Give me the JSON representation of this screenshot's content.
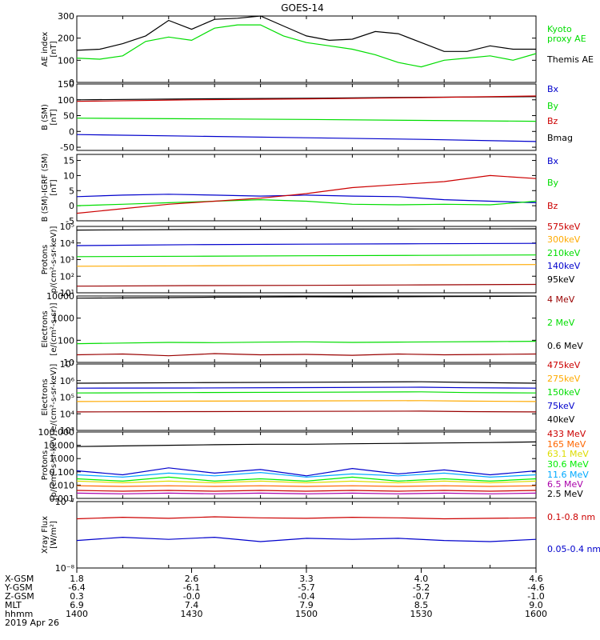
{
  "title": "GOES-14",
  "colors": {
    "black": "#000000",
    "green": "#00dd00",
    "red": "#cc0000",
    "blue": "#0000cc",
    "darkred": "#990000",
    "orange": "#ffaa00",
    "yellow": "#dddd00",
    "cyan": "#00aaff",
    "purple": "#aa00aa",
    "brightgreen": "#00ee00"
  },
  "chart_data": [
    {
      "type": "line",
      "id": "ae",
      "ylabel_lines": [
        "AE index",
        "[nT]"
      ],
      "yscale": "linear",
      "ylim": [
        0,
        300
      ],
      "ticks": [
        0,
        100,
        200,
        300
      ],
      "tick_labels": [
        "0",
        "100",
        "200",
        "300"
      ],
      "x": [
        0,
        0.05,
        0.1,
        0.15,
        0.2,
        0.25,
        0.3,
        0.35,
        0.4,
        0.45,
        0.5,
        0.55,
        0.6,
        0.65,
        0.7,
        0.75,
        0.8,
        0.85,
        0.9,
        0.95,
        1.0
      ],
      "legend": [
        {
          "label": "Kyoto",
          "color": "#00dd00"
        },
        {
          "label": "proxy AE",
          "color": "#00dd00"
        },
        {
          "label": "Themis AE",
          "color": "#000000"
        }
      ],
      "series": [
        {
          "color": "#000000",
          "values": [
            145,
            150,
            175,
            210,
            280,
            240,
            285,
            290,
            300,
            255,
            210,
            190,
            195,
            230,
            220,
            180,
            140,
            140,
            165,
            150,
            150
          ]
        },
        {
          "color": "#00dd00",
          "values": [
            110,
            105,
            120,
            185,
            205,
            190,
            245,
            260,
            260,
            210,
            180,
            165,
            150,
            125,
            90,
            70,
            100,
            110,
            120,
            100,
            130
          ]
        }
      ]
    },
    {
      "type": "line",
      "id": "bsm",
      "ylabel_lines": [
        "B (SM)",
        "[nT]"
      ],
      "yscale": "linear",
      "ylim": [
        -60,
        150
      ],
      "ticks": [
        -50,
        0,
        50,
        100,
        150
      ],
      "tick_labels": [
        "-50",
        "0",
        "50",
        "100",
        "150"
      ],
      "x": [
        0,
        0.25,
        0.5,
        0.75,
        1.0
      ],
      "legend": [
        {
          "label": "Bx",
          "color": "#0000cc"
        },
        {
          "label": "By",
          "color": "#00dd00"
        },
        {
          "label": "Bz",
          "color": "#cc0000"
        },
        {
          "label": "Bmag",
          "color": "#000000"
        }
      ],
      "series": [
        {
          "color": "#000000",
          "values": [
            100,
            103,
            105,
            108,
            110
          ]
        },
        {
          "color": "#cc0000",
          "values": [
            95,
            100,
            103,
            107,
            112
          ]
        },
        {
          "color": "#00dd00",
          "values": [
            42,
            40,
            38,
            35,
            32
          ]
        },
        {
          "color": "#0000cc",
          "values": [
            -10,
            -15,
            -20,
            -25,
            -32
          ]
        }
      ]
    },
    {
      "type": "line",
      "id": "bdiff",
      "ylabel_lines": [
        "B (SM)-IGRF (SM)",
        "[nT]"
      ],
      "yscale": "linear",
      "ylim": [
        -5,
        17
      ],
      "ticks": [
        -5,
        0,
        5,
        10,
        15
      ],
      "tick_labels": [
        "-5",
        "0",
        "5",
        "10",
        "15"
      ],
      "x": [
        0,
        0.1,
        0.2,
        0.3,
        0.4,
        0.5,
        0.6,
        0.7,
        0.8,
        0.9,
        1.0
      ],
      "legend": [
        {
          "label": "Bx",
          "color": "#0000cc"
        },
        {
          "label": "By",
          "color": "#00dd00"
        },
        {
          "label": "Bz",
          "color": "#cc0000"
        }
      ],
      "series": [
        {
          "color": "#0000cc",
          "values": [
            3,
            3.5,
            3.8,
            3.5,
            3.2,
            3.5,
            3.2,
            3,
            2,
            1.5,
            1
          ]
        },
        {
          "color": "#00dd00",
          "values": [
            0,
            0.5,
            1,
            1.5,
            2,
            1.5,
            0.5,
            0.3,
            0.5,
            0.3,
            1.5
          ]
        },
        {
          "color": "#cc0000",
          "values": [
            -2.5,
            -1,
            0.5,
            1.5,
            2.5,
            4,
            6,
            7,
            8,
            10,
            9
          ]
        }
      ]
    },
    {
      "type": "line",
      "id": "protons1",
      "ylabel_lines": [
        "Protons",
        "p/(cm²-s-sr-keV)]"
      ],
      "yscale": "log",
      "ylim": [
        10,
        100000
      ],
      "ticks": [
        10,
        100,
        1000,
        10000,
        100000
      ],
      "tick_labels": [
        "10¹",
        "10²",
        "10³",
        "10⁴",
        "10⁵"
      ],
      "x": [
        0,
        0.25,
        0.5,
        0.75,
        1.0
      ],
      "legend": [
        {
          "label": "575keV",
          "color": "#cc0000"
        },
        {
          "label": "300keV",
          "color": "#ffaa00"
        },
        {
          "label": "210keV",
          "color": "#00dd00"
        },
        {
          "label": "140keV",
          "color": "#0000cc"
        },
        {
          "label": "95keV",
          "color": "#000000"
        }
      ],
      "series": [
        {
          "color": "#000000",
          "values": [
            60000,
            65000,
            68000,
            70000,
            72000
          ]
        },
        {
          "color": "#0000cc",
          "values": [
            7000,
            8000,
            8500,
            9000,
            9500
          ]
        },
        {
          "color": "#00dd00",
          "values": [
            1500,
            1600,
            1700,
            1800,
            1900
          ]
        },
        {
          "color": "#ffaa00",
          "values": [
            400,
            420,
            450,
            480,
            500
          ]
        },
        {
          "color": "#990000",
          "values": [
            25,
            27,
            28,
            30,
            32
          ]
        }
      ]
    },
    {
      "type": "line",
      "id": "electrons1",
      "ylabel_lines": [
        "Electrons",
        "[e/(cm²-s-sr)]"
      ],
      "yscale": "log",
      "ylim": [
        10,
        10000
      ],
      "ticks": [
        10,
        100,
        1000,
        10000
      ],
      "tick_labels": [
        "10",
        "100",
        "1000",
        "10000"
      ],
      "x": [
        0,
        0.1,
        0.2,
        0.3,
        0.4,
        0.5,
        0.6,
        0.7,
        0.8,
        0.9,
        1.0
      ],
      "legend": [
        {
          "label": "4 MeV",
          "color": "#990000"
        },
        {
          "label": "2 MeV",
          "color": "#00dd00"
        },
        {
          "label": "0.6 MeV",
          "color": "#000000"
        }
      ],
      "series": [
        {
          "color": "#000000",
          "values": [
            8000,
            8200,
            8500,
            8800,
            9000,
            9200,
            9100,
            9300,
            9500,
            9600,
            9800
          ]
        },
        {
          "color": "#00dd00",
          "values": [
            70,
            75,
            80,
            78,
            82,
            85,
            80,
            83,
            85,
            87,
            90
          ]
        },
        {
          "color": "#990000",
          "values": [
            22,
            24,
            20,
            25,
            22,
            23,
            21,
            24,
            22,
            23,
            24
          ]
        }
      ]
    },
    {
      "type": "line",
      "id": "electrons2",
      "ylabel_lines": [
        "Electrons",
        "e/(cm²-s-sr-keV)]"
      ],
      "yscale": "log",
      "ylim": [
        1000,
        10000000
      ],
      "ticks": [
        1000,
        10000,
        100000,
        1000000,
        10000000
      ],
      "tick_labels": [
        "10³",
        "10⁴",
        "10⁵",
        "10⁶",
        "10⁷"
      ],
      "x": [
        0,
        0.25,
        0.5,
        0.75,
        0.85,
        1.0
      ],
      "legend": [
        {
          "label": "475keV",
          "color": "#cc0000"
        },
        {
          "label": "275keV",
          "color": "#ffaa00"
        },
        {
          "label": "150keV",
          "color": "#00dd00"
        },
        {
          "label": "75keV",
          "color": "#0000cc"
        },
        {
          "label": "40keV",
          "color": "#000000"
        }
      ],
      "series": [
        {
          "color": "#000000",
          "values": [
            700000,
            750000,
            800000,
            850000,
            780000,
            700000
          ]
        },
        {
          "color": "#0000cc",
          "values": [
            350000,
            360000,
            380000,
            400000,
            370000,
            350000
          ]
        },
        {
          "color": "#00dd00",
          "values": [
            180000,
            190000,
            200000,
            210000,
            190000,
            180000
          ]
        },
        {
          "color": "#ffaa00",
          "values": [
            55000,
            58000,
            60000,
            62000,
            58000,
            55000
          ]
        },
        {
          "color": "#990000",
          "values": [
            13000,
            13500,
            14000,
            14500,
            13500,
            13000
          ]
        }
      ]
    },
    {
      "type": "line",
      "id": "protons2",
      "ylabel_lines": [
        "Protons",
        "[p/(cm²-s-sr-keV)]"
      ],
      "yscale": "log",
      "ylim": [
        0.001,
        100
      ],
      "ticks": [
        0.001,
        0.01,
        0.1,
        1,
        10,
        100
      ],
      "tick_labels": [
        "0.001",
        "0.010",
        "0.100",
        "1.000",
        "10.000",
        "100.000"
      ],
      "x": [
        0,
        0.1,
        0.2,
        0.3,
        0.4,
        0.5,
        0.6,
        0.7,
        0.8,
        0.9,
        1.0
      ],
      "legend": [
        {
          "label": "433 MeV",
          "color": "#cc0000"
        },
        {
          "label": "165 MeV",
          "color": "#ff6600"
        },
        {
          "label": "63.1 MeV",
          "color": "#dddd00"
        },
        {
          "label": "30.6 MeV",
          "color": "#00ee00"
        },
        {
          "label": "11.6 MeV",
          "color": "#00aaff"
        },
        {
          "label": "6.5 MeV",
          "color": "#aa00aa"
        },
        {
          "label": "2.5 MeV",
          "color": "#000000"
        }
      ],
      "series": [
        {
          "color": "#000000",
          "values": [
            8,
            9,
            10,
            11,
            12,
            12,
            13,
            14,
            15,
            16,
            18
          ]
        },
        {
          "color": "#0000cc",
          "values": [
            0.12,
            0.06,
            0.2,
            0.08,
            0.15,
            0.05,
            0.18,
            0.07,
            0.14,
            0.06,
            0.12
          ]
        },
        {
          "color": "#00aaff",
          "values": [
            0.06,
            0.04,
            0.08,
            0.05,
            0.09,
            0.04,
            0.07,
            0.05,
            0.08,
            0.04,
            0.06
          ]
        },
        {
          "color": "#00ee00",
          "values": [
            0.03,
            0.02,
            0.04,
            0.02,
            0.03,
            0.02,
            0.04,
            0.02,
            0.03,
            0.02,
            0.03
          ]
        },
        {
          "color": "#dddd00",
          "values": [
            0.02,
            0.015,
            0.02,
            0.015,
            0.02,
            0.015,
            0.02,
            0.015,
            0.02,
            0.015,
            0.02
          ]
        },
        {
          "color": "#ff6600",
          "values": [
            0.009,
            0.008,
            0.009,
            0.008,
            0.009,
            0.008,
            0.009,
            0.008,
            0.009,
            0.008,
            0.009
          ]
        },
        {
          "color": "#cc0000",
          "values": [
            0.004,
            0.0035,
            0.004,
            0.0035,
            0.004,
            0.0035,
            0.004,
            0.0035,
            0.004,
            0.0035,
            0.004
          ]
        },
        {
          "color": "#aa00aa",
          "values": [
            0.0025,
            0.0022,
            0.0025,
            0.0022,
            0.0025,
            0.0022,
            0.0025,
            0.0022,
            0.0025,
            0.0022,
            0.0025
          ]
        }
      ]
    },
    {
      "type": "line",
      "id": "xray",
      "ylabel_lines": [
        "Xray Flux",
        "[W/m²]"
      ],
      "yscale": "log",
      "ylim": [
        1e-08,
        1e-07
      ],
      "ticks": [
        1e-08,
        1e-07
      ],
      "tick_labels": [
        "10⁻⁸",
        "10⁻⁷"
      ],
      "x": [
        0,
        0.1,
        0.2,
        0.3,
        0.4,
        0.5,
        0.6,
        0.7,
        0.8,
        0.9,
        1.0
      ],
      "legend": [
        {
          "label": "0.1-0.8 nm",
          "color": "#cc0000"
        },
        {
          "label": "0.05-0.4 nm",
          "color": "#0000cc"
        }
      ],
      "series": [
        {
          "color": "#cc0000",
          "values": [
            5.5e-08,
            5.8e-08,
            5.6e-08,
            5.9e-08,
            5.7e-08,
            5.6e-08,
            5.8e-08,
            5.7e-08,
            5.5e-08,
            5.6e-08,
            5.7e-08
          ]
        },
        {
          "color": "#0000cc",
          "values": [
            2.6e-08,
            2.9e-08,
            2.7e-08,
            2.9e-08,
            2.5e-08,
            2.8e-08,
            2.7e-08,
            2.8e-08,
            2.6e-08,
            2.5e-08,
            2.7e-08
          ]
        }
      ]
    }
  ],
  "footer": {
    "row_labels": [
      "X-GSM",
      "Y-GSM",
      "Z-GSM",
      "MLT",
      "hhmm",
      "2019 Apr 26"
    ],
    "columns": [
      [
        "1.8",
        "-6.4",
        "0.3",
        "6.9",
        "1400"
      ],
      [
        "2.6",
        "-6.1",
        "-0.0",
        "7.4",
        "1430"
      ],
      [
        "3.3",
        "-5.7",
        "-0.4",
        "7.9",
        "1500"
      ],
      [
        "4.0",
        "-5.2",
        "-0.7",
        "8.5",
        "1530"
      ],
      [
        "4.6",
        "-4.6",
        "-1.0",
        "9.0",
        "1600"
      ]
    ]
  }
}
